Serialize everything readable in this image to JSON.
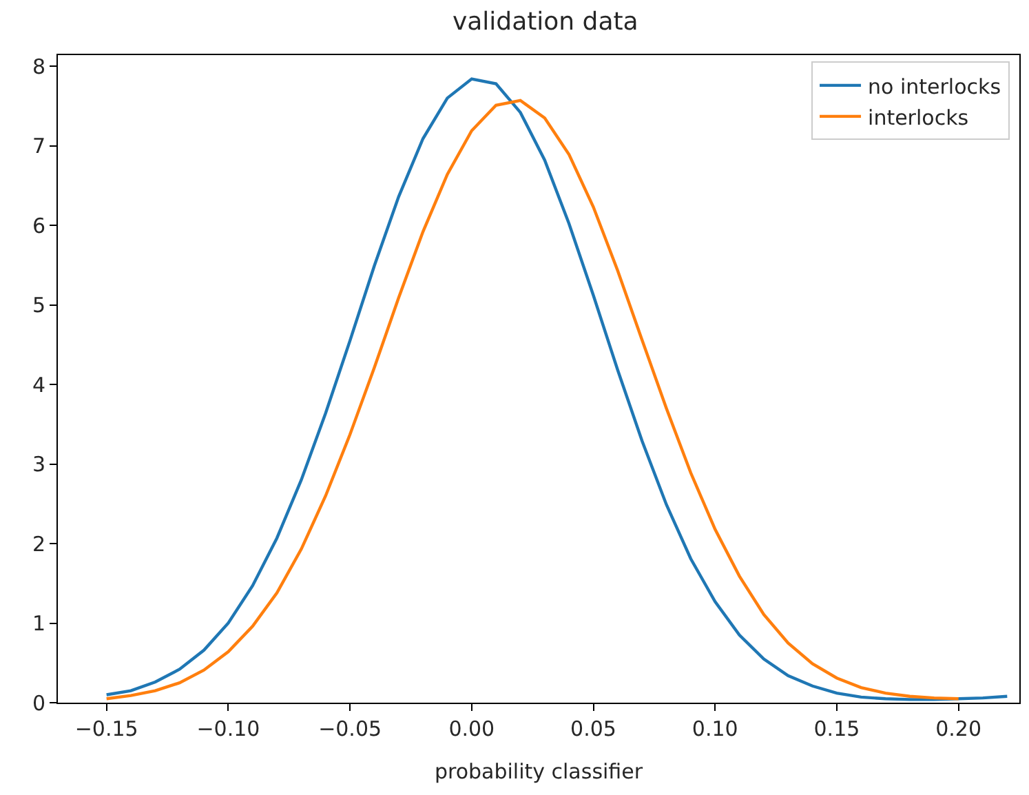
{
  "chart_data": {
    "type": "line",
    "title": "validation data",
    "xlabel": "probability classifier",
    "xlim": [
      -0.17,
      0.225
    ],
    "ylim": [
      0,
      8.14
    ],
    "xticks": [
      {
        "value": -0.15,
        "label": "−0.15"
      },
      {
        "value": -0.1,
        "label": "−0.10"
      },
      {
        "value": -0.05,
        "label": "−0.05"
      },
      {
        "value": 0,
        "label": "0.00"
      },
      {
        "value": 0.05,
        "label": "0.05"
      },
      {
        "value": 0.1,
        "label": "0.10"
      },
      {
        "value": 0.15,
        "label": "0.15"
      },
      {
        "value": 0.2,
        "label": "0.20"
      }
    ],
    "yticks": [
      0,
      1,
      2,
      3,
      4,
      5,
      6,
      7,
      8
    ],
    "grid": false,
    "legend": "top right",
    "marker": "none",
    "line_style": "solid",
    "series": [
      {
        "name": "no interlocks",
        "color": "#1f77b4",
        "x": [
          -0.15,
          -0.14,
          -0.13,
          -0.12,
          -0.11,
          -0.1,
          -0.09,
          -0.08,
          -0.07,
          -0.06,
          -0.05,
          -0.04,
          -0.03,
          -0.02,
          -0.01,
          0,
          0.01,
          0.02,
          0.03,
          0.04,
          0.05,
          0.06,
          0.07,
          0.08,
          0.09,
          0.1,
          0.11,
          0.12,
          0.13,
          0.14,
          0.15,
          0.16,
          0.17,
          0.18,
          0.19,
          0.2,
          0.21,
          0.22
        ],
        "values": [
          0.1,
          0.15,
          0.26,
          0.42,
          0.66,
          1.0,
          1.47,
          2.07,
          2.8,
          3.64,
          4.55,
          5.49,
          6.36,
          7.09,
          7.6,
          7.84,
          7.78,
          7.42,
          6.82,
          6.02,
          5.12,
          4.18,
          3.29,
          2.49,
          1.81,
          1.27,
          0.85,
          0.55,
          0.34,
          0.21,
          0.12,
          0.07,
          0.05,
          0.04,
          0.04,
          0.05,
          0.06,
          0.08
        ]
      },
      {
        "name": "interlocks",
        "color": "#ff7f0e",
        "x": [
          -0.15,
          -0.14,
          -0.13,
          -0.12,
          -0.11,
          -0.1,
          -0.09,
          -0.08,
          -0.07,
          -0.06,
          -0.05,
          -0.04,
          -0.03,
          -0.02,
          -0.01,
          0,
          0.01,
          0.02,
          0.03,
          0.04,
          0.05,
          0.06,
          0.07,
          0.08,
          0.09,
          0.1,
          0.11,
          0.12,
          0.13,
          0.14,
          0.15,
          0.16,
          0.17,
          0.18,
          0.19,
          0.2
        ],
        "values": [
          0.05,
          0.09,
          0.15,
          0.25,
          0.41,
          0.64,
          0.96,
          1.38,
          1.93,
          2.6,
          3.37,
          4.21,
          5.09,
          5.92,
          6.64,
          7.19,
          7.51,
          7.57,
          7.35,
          6.89,
          6.23,
          5.43,
          4.56,
          3.7,
          2.89,
          2.18,
          1.59,
          1.11,
          0.75,
          0.49,
          0.31,
          0.19,
          0.12,
          0.08,
          0.06,
          0.05
        ]
      }
    ]
  }
}
